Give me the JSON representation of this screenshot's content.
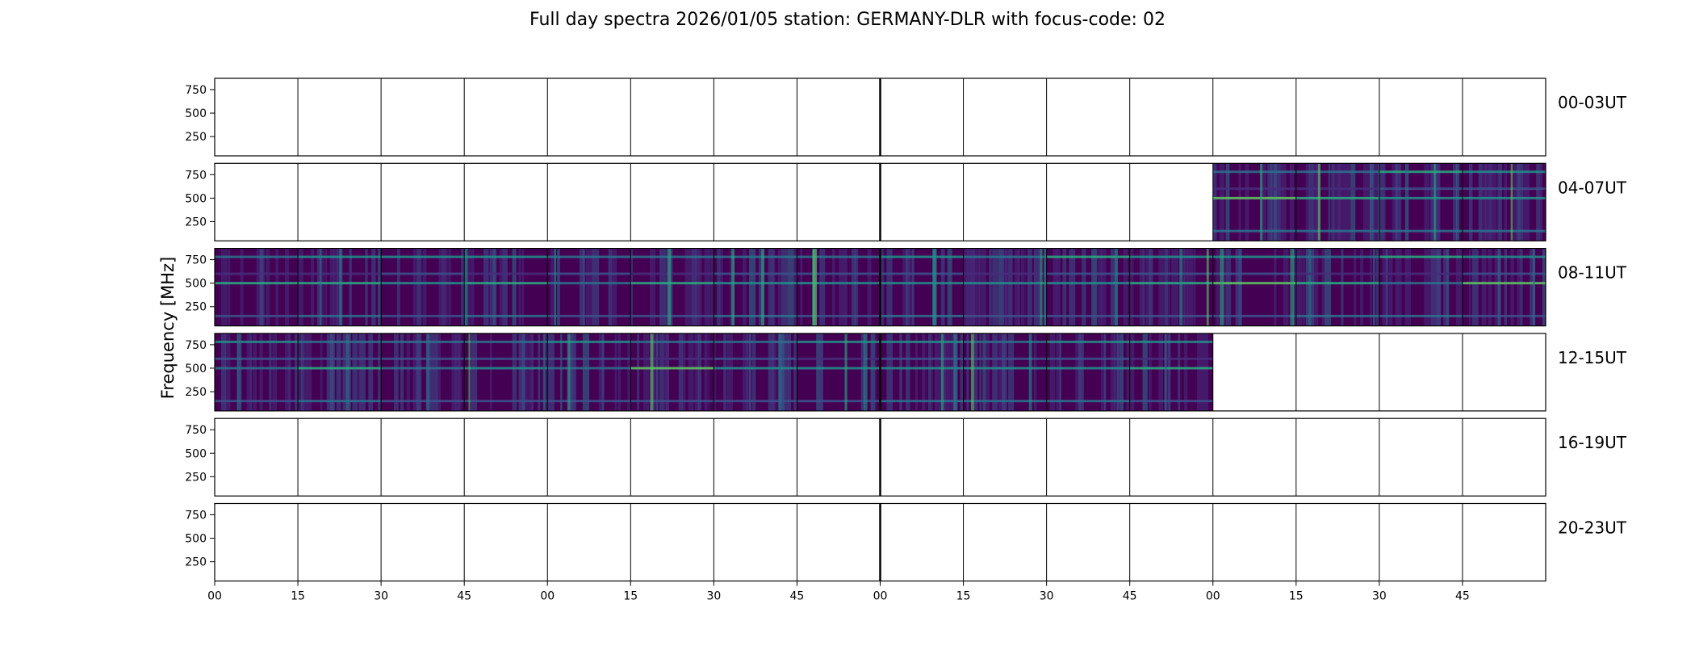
{
  "chart_data": {
    "type": "heatmap",
    "title": "Full day spectra 2026/01/05 station: GERMANY-DLR with focus-code: 02",
    "ylabel": "Frequency [MHz]",
    "xlabel": "",
    "ylim": [
      45,
      870
    ],
    "yticks": [
      "750",
      "500",
      "250"
    ],
    "ytick_values": [
      750,
      500,
      250
    ],
    "xticks": [
      "00",
      "15",
      "30",
      "45",
      "00",
      "15",
      "30",
      "45",
      "00",
      "15",
      "30",
      "45",
      "00",
      "15",
      "30",
      "45"
    ],
    "rows": [
      {
        "label": "00-03UT",
        "segments_with_data": []
      },
      {
        "label": "04-07UT",
        "segments_with_data": [
          12,
          13,
          14,
          15
        ]
      },
      {
        "label": "08-11UT",
        "segments_with_data": [
          0,
          1,
          2,
          3,
          4,
          5,
          6,
          7,
          8,
          9,
          10,
          11,
          12,
          13,
          14,
          15
        ]
      },
      {
        "label": "12-15UT",
        "segments_with_data": [
          0,
          1,
          2,
          3,
          4,
          5,
          6,
          7,
          8,
          9,
          10,
          11
        ]
      },
      {
        "label": "16-19UT",
        "segments_with_data": []
      },
      {
        "label": "20-23UT",
        "segments_with_data": []
      }
    ],
    "colormap": [
      "#440154",
      "#472d7b",
      "#3b528b",
      "#2c728e",
      "#21918c",
      "#28ae80",
      "#5ec962",
      "#addc30",
      "#fde725"
    ]
  }
}
